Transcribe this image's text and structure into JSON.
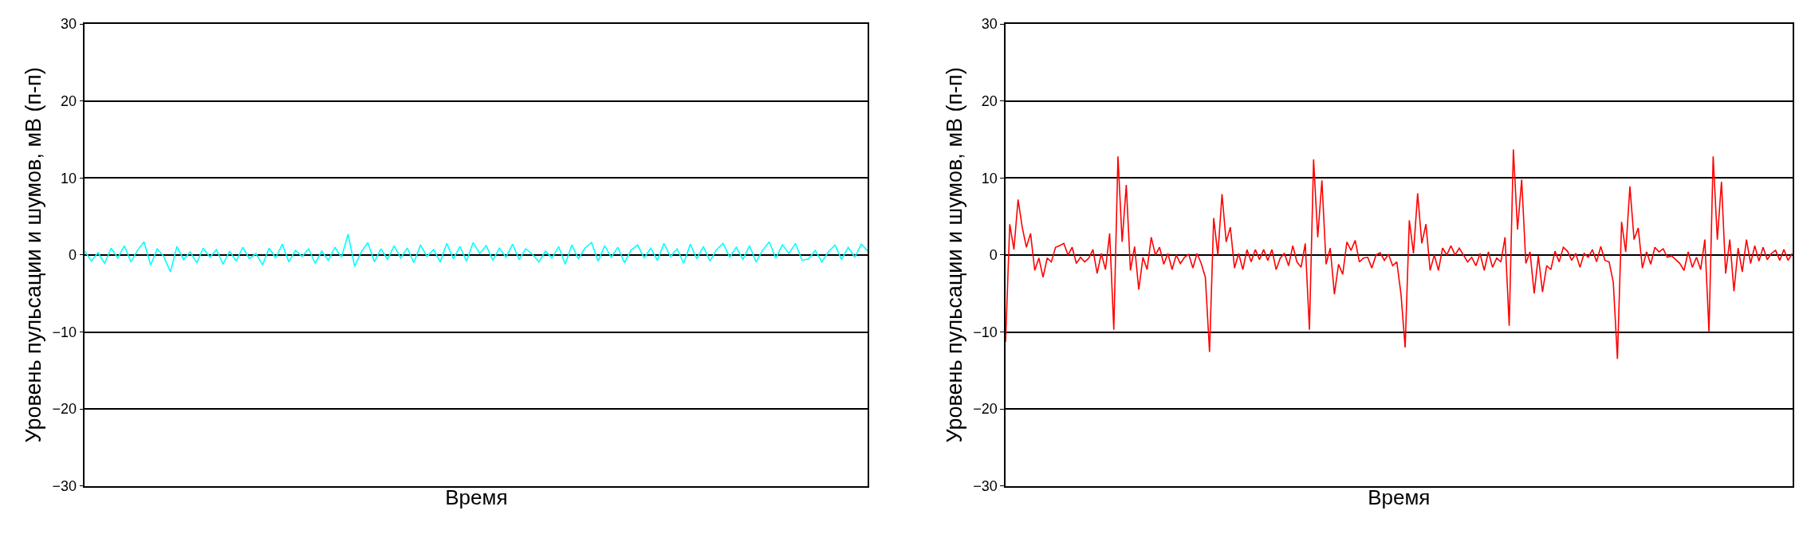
{
  "chart_data": [
    {
      "type": "line",
      "xlabel": "Время",
      "ylabel": "Уровень пульсации и шумов, мВ (п-п)",
      "ylim": [
        -30,
        30
      ],
      "yticks": [
        {
          "value": -30,
          "label": "−30"
        },
        {
          "value": -20,
          "label": "−20"
        },
        {
          "value": -10,
          "label": "−10"
        },
        0,
        10,
        20,
        30
      ],
      "grid": "y",
      "tick_labels": "y",
      "marker": "none",
      "line_style": "solid",
      "categories": [
        null,
        null,
        null,
        null,
        null,
        null,
        null,
        null,
        null,
        null,
        null,
        null,
        null,
        null,
        null,
        null,
        null,
        null,
        null,
        null,
        null,
        null,
        null,
        null,
        null,
        null,
        null,
        null,
        null,
        null,
        null,
        null,
        null,
        null,
        null,
        null,
        null,
        null,
        null,
        null,
        null,
        null,
        null,
        null,
        null,
        null,
        null,
        null,
        null,
        null,
        null,
        null,
        null,
        null,
        null,
        null,
        null,
        null,
        null,
        null,
        null,
        null,
        null,
        null,
        null,
        null,
        null,
        null,
        null,
        null,
        null,
        null,
        null,
        null,
        null,
        null,
        null,
        null,
        null,
        null,
        null,
        null,
        null,
        null,
        null,
        null,
        null,
        null,
        null,
        null,
        null,
        null,
        null,
        null,
        null,
        null,
        null,
        null,
        null,
        null,
        null,
        null,
        null,
        null,
        null,
        null,
        null,
        null,
        null,
        null,
        null,
        null,
        null,
        null,
        null,
        null,
        null,
        null,
        null,
        null
      ],
      "series": [
        {
          "color": "#00ffff",
          "values": [
            0.5,
            -0.8,
            0.3,
            -1.1,
            0.9,
            -0.4,
            1.2,
            -0.9,
            0.6,
            1.7,
            -1.3,
            0.8,
            -0.2,
            -2.2,
            1.1,
            -0.6,
            0.4,
            -1.0,
            0.9,
            -0.3,
            0.7,
            -1.2,
            0.5,
            -0.8,
            1.0,
            -0.5,
            0.2,
            -1.3,
            0.9,
            -0.4,
            1.4,
            -0.9,
            0.6,
            -0.2,
            0.8,
            -1.1,
            0.5,
            -0.7,
            1.0,
            -0.3,
            2.7,
            -1.5,
            0.4,
            1.6,
            -0.9,
            0.8,
            -0.6,
            1.2,
            -0.4,
            0.9,
            -1.0,
            1.3,
            -0.2,
            0.7,
            -0.9,
            1.5,
            -0.5,
            1.1,
            -0.8,
            1.6,
            0.2,
            1.2,
            -0.7,
            0.9,
            -0.3,
            1.4,
            -0.6,
            0.8,
            0.1,
            -0.9,
            0.5,
            -0.4,
            1.1,
            -1.2,
            1.3,
            -0.5,
            0.9,
            1.6,
            -0.8,
            1.2,
            -0.3,
            1.0,
            -1.0,
            0.6,
            1.3,
            -0.4,
            0.9,
            -0.7,
            1.5,
            -0.2,
            0.8,
            -1.1,
            1.4,
            -0.5,
            1.1,
            -0.8,
            0.7,
            1.5,
            -0.3,
            1.0,
            -0.6,
            1.2,
            -0.9,
            0.6,
            1.7,
            -0.4,
            1.3,
            0.2,
            1.5,
            -0.7,
            -0.5,
            0.6,
            -0.9,
            0.4,
            1.3,
            -0.6,
            1.0,
            -0.3,
            1.4,
            0.5
          ]
        }
      ]
    },
    {
      "type": "line",
      "xlabel": "Время",
      "ylabel": "Уровень пульсации и шумов, мВ (п-п)",
      "ylim": [
        -30,
        30
      ],
      "yticks": [
        {
          "value": -30,
          "label": "−30"
        },
        {
          "value": -20,
          "label": "−20"
        },
        {
          "value": -10,
          "label": "−10"
        },
        0,
        10,
        20,
        30
      ],
      "grid": "y",
      "tick_labels": "y",
      "marker": "none",
      "line_style": "solid",
      "categories": [
        null,
        null,
        null,
        null,
        null,
        null,
        null,
        null,
        null,
        null,
        null,
        null,
        null,
        null,
        null,
        null,
        null,
        null,
        null,
        null,
        null,
        null,
        null,
        null,
        null,
        null,
        null,
        null,
        null,
        null,
        null,
        null,
        null,
        null,
        null,
        null,
        null,
        null,
        null,
        null,
        null,
        null,
        null,
        null,
        null,
        null,
        null,
        null,
        null,
        null,
        null,
        null,
        null,
        null,
        null,
        null,
        null,
        null,
        null,
        null,
        null,
        null,
        null,
        null,
        null,
        null,
        null,
        null,
        null,
        null,
        null,
        null,
        null,
        null,
        null,
        null,
        null,
        null,
        null,
        null,
        null,
        null,
        null,
        null,
        null,
        null,
        null,
        null,
        null,
        null,
        null,
        null,
        null,
        null,
        null,
        null,
        null,
        null,
        null,
        null,
        null,
        null,
        null,
        null,
        null,
        null,
        null,
        null,
        null,
        null,
        null,
        null,
        null,
        null,
        null,
        null,
        null,
        null,
        null,
        null,
        null,
        null,
        null,
        null,
        null,
        null,
        null,
        null,
        null,
        null,
        null,
        null,
        null,
        null,
        null,
        null,
        null,
        null,
        null,
        null,
        null,
        null,
        null,
        null,
        null,
        null,
        null,
        null,
        null,
        null,
        null,
        null,
        null,
        null,
        null,
        null,
        null,
        null,
        null,
        null,
        null,
        null,
        null,
        null,
        null,
        null,
        null,
        null,
        null,
        null,
        null,
        null,
        null,
        null,
        null,
        null,
        null,
        null,
        null,
        null,
        null,
        null,
        null,
        null,
        null,
        null,
        null,
        null,
        null,
        null
      ],
      "series": [
        {
          "color": "#ff0000",
          "values": [
            -11.3,
            4.0,
            0.7,
            7.2,
            3.6,
            1.0,
            2.8,
            -2.0,
            -0.4,
            -2.9,
            -0.4,
            -0.9,
            1.0,
            1.2,
            1.5,
            0,
            1.0,
            -1.1,
            -0.3,
            -0.9,
            -0.4,
            0.7,
            -2.4,
            0.2,
            -1.9,
            2.8,
            -9.7,
            12.8,
            1.7,
            9.1,
            -2.0,
            1.1,
            -4.5,
            -0.3,
            -1.9,
            2.3,
            0,
            1.0,
            -1.2,
            0.2,
            -1.9,
            0,
            -1.1,
            -0.3,
            0.1,
            -1.7,
            0.2,
            -1.1,
            -2.9,
            -12.6,
            4.8,
            0,
            7.9,
            1.7,
            3.6,
            -1.7,
            0.2,
            -1.9,
            0.7,
            -0.9,
            0.7,
            -0.6,
            0.7,
            -0.7,
            0.7,
            -1.9,
            -0.4,
            0.2,
            -1.4,
            1.2,
            -0.9,
            -1.6,
            1.5,
            -9.7,
            12.4,
            2.3,
            9.7,
            -1.2,
            0.9,
            -5.1,
            -1.2,
            -2.5,
            1.7,
            0.6,
            1.9,
            -0.9,
            -0.4,
            -0.3,
            -1.7,
            0,
            0.3,
            -0.7,
            0.1,
            -1.4,
            -0.9,
            -5.1,
            -12.0,
            4.5,
            0.2,
            8.0,
            1.5,
            4.0,
            -2.0,
            0,
            -2.0,
            0.9,
            0,
            1.2,
            0,
            0.9,
            0,
            -0.9,
            -0.3,
            -1.4,
            0.2,
            -2.0,
            0.4,
            -1.6,
            -0.4,
            -0.9,
            2.3,
            -9.2,
            13.7,
            3.3,
            9.8,
            -1.1,
            0.4,
            -5.0,
            -0.1,
            -4.8,
            -1.4,
            -1.9,
            0.5,
            -0.9,
            1.0,
            0.5,
            -0.7,
            0.2,
            -1.6,
            0.2,
            -0.3,
            0.7,
            -0.9,
            1.1,
            -0.7,
            -0.9,
            -3.5,
            -13.5,
            4.3,
            0.4,
            8.9,
            2.0,
            3.5,
            -1.7,
            0.4,
            -1.2,
            1.0,
            0.4,
            0.8,
            -0.3,
            -0.1,
            -0.6,
            -1.1,
            -2.0,
            0.4,
            -1.6,
            -0.3,
            -1.9,
            2.0,
            -10.0,
            12.8,
            2.0,
            9.5,
            -2.4,
            2.0,
            -4.7,
            0.9,
            -2.2,
            2.0,
            -1.1,
            1.2,
            -0.8,
            1.0,
            -0.6,
            0.2,
            0.6,
            -0.7,
            0.7,
            -0.7,
            0.2
          ]
        }
      ]
    }
  ]
}
